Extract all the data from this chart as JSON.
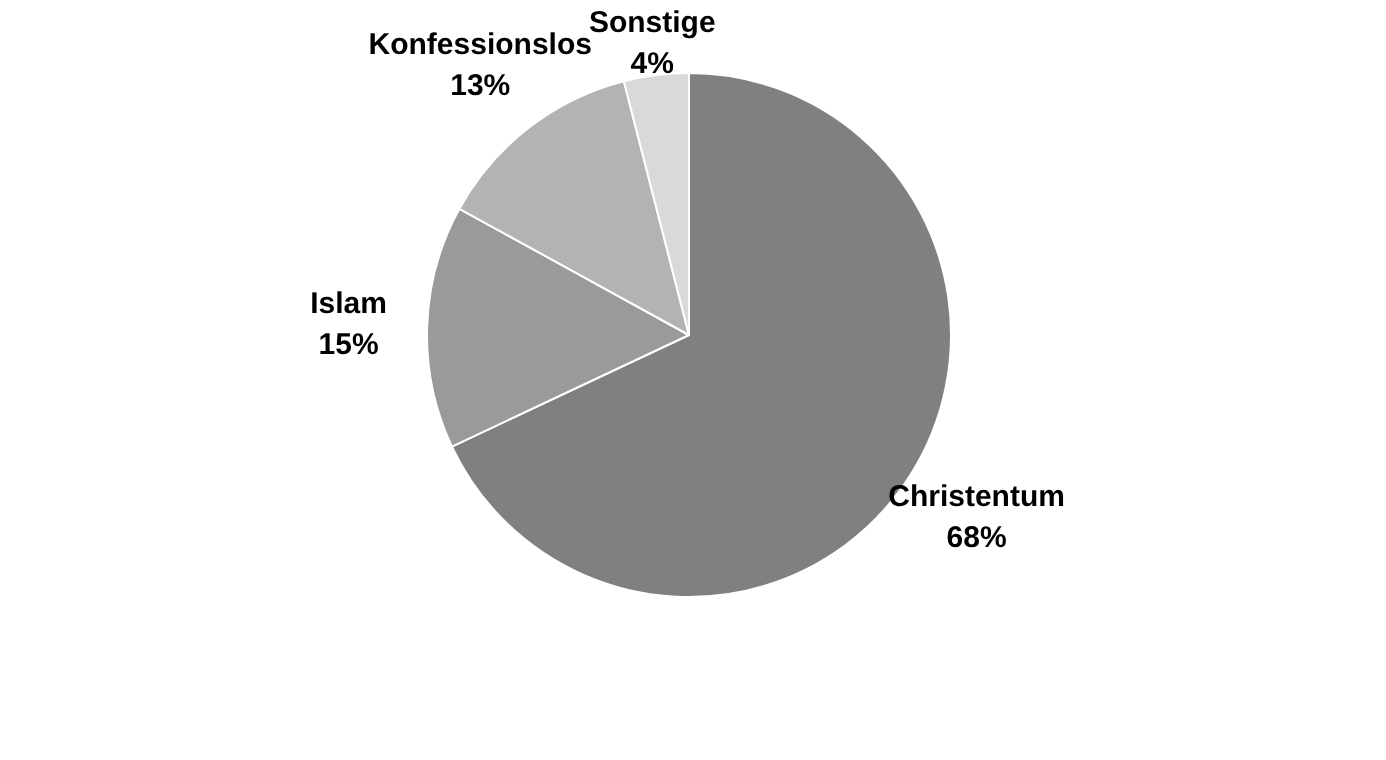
{
  "chart_data": {
    "type": "pie",
    "categories": [
      "Christentum",
      "Islam",
      "Konfessionslos",
      "Sonstige"
    ],
    "values": [
      68,
      15,
      13,
      4
    ],
    "colors": [
      "#808080",
      "#9a9a9a",
      "#b3b3b3",
      "#d9d9d9"
    ],
    "value_labels": [
      "68%",
      "15%",
      "13%",
      "4%"
    ]
  }
}
